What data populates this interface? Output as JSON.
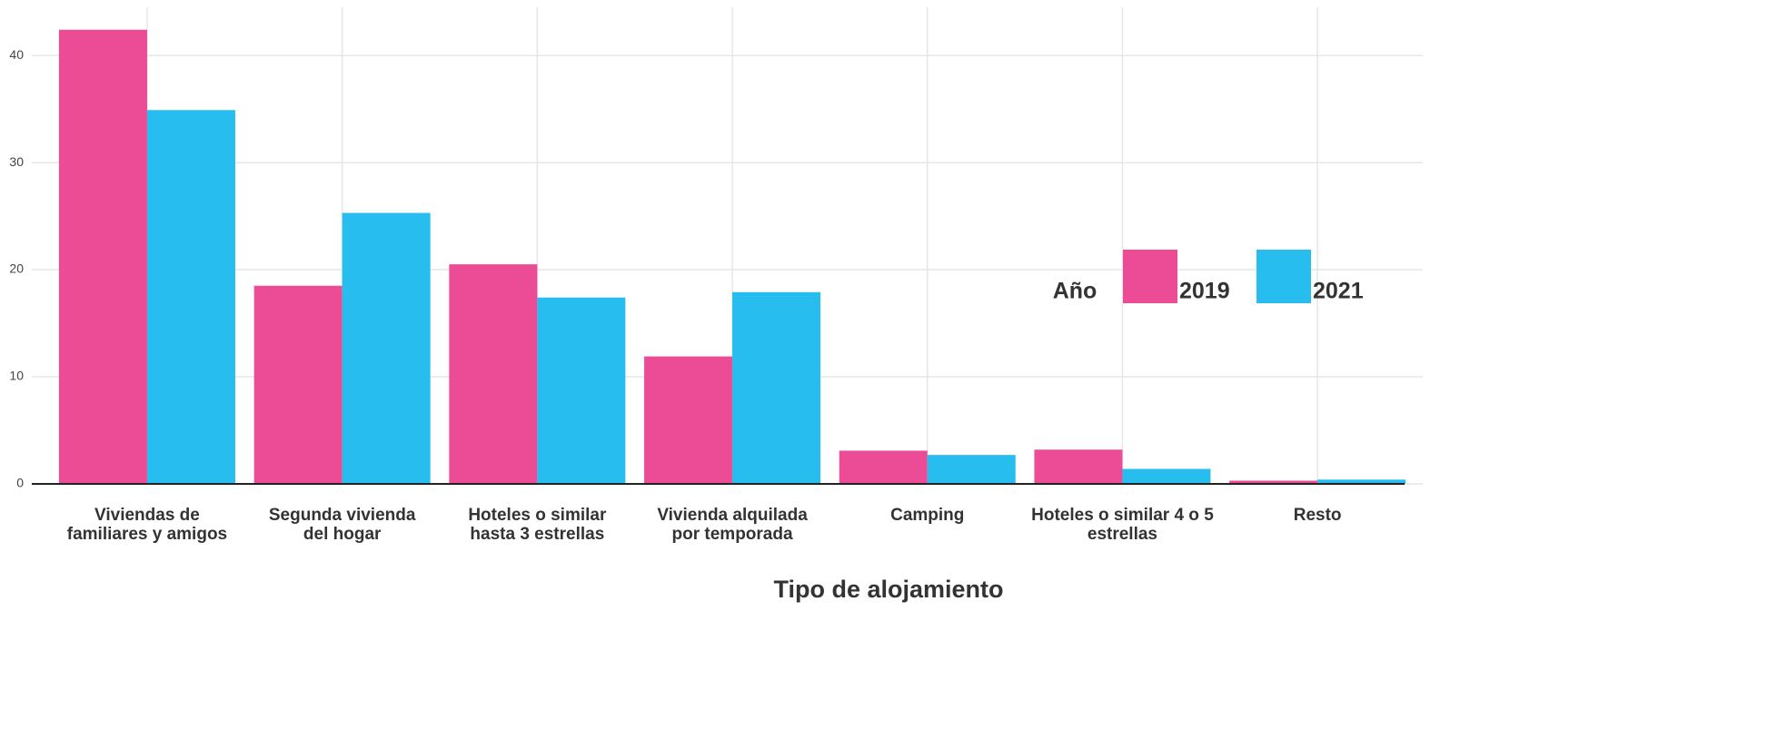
{
  "chart_data": {
    "type": "bar",
    "x_label": "Tipo de alojamiento",
    "categories": [
      "Viviendas de\nfamiliares y amigos",
      "Segunda vivienda\ndel hogar",
      "Hoteles o similar\nhasta 3 estrellas",
      "Vivienda alquilada\npor temporada",
      "Camping",
      "Hoteles o similar 4 o 5\nestrellas",
      "Resto"
    ],
    "series": [
      {
        "name": "2019",
        "color": "#ec4b96",
        "values": [
          42.4,
          18.5,
          20.5,
          11.9,
          3.1,
          3.2,
          0.3
        ]
      },
      {
        "name": "2021",
        "color": "#27bdef",
        "values": [
          34.9,
          25.3,
          17.4,
          17.9,
          2.7,
          1.4,
          0.4
        ]
      }
    ],
    "legend_title": "Año",
    "ylim": [
      0,
      44.5
    ],
    "yticks": [
      0,
      10,
      20,
      30,
      40
    ],
    "grid": true
  }
}
